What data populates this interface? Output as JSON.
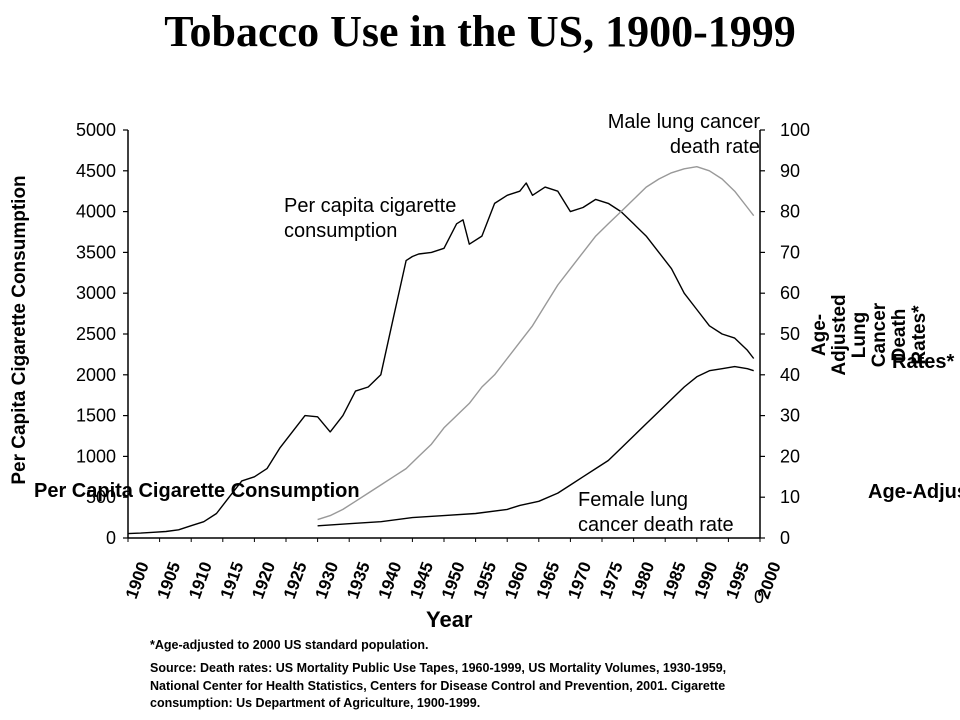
{
  "title": "Tobacco Use in the US, 1900-1999",
  "chart_data": {
    "type": "line",
    "title": "Tobacco Use in the US, 1900-1999",
    "xlabel": "Year",
    "ylabel_left": "Per Capita Cigarette Consumption",
    "ylabel_right": "Age-Adjusted Lung Cancer Death Rates*",
    "xlim": [
      1900,
      2000
    ],
    "ylim_left": [
      0,
      5000
    ],
    "ylim_right": [
      0,
      100
    ],
    "yticks_left": [
      "0",
      "500",
      "1000",
      "1500",
      "2000",
      "2500",
      "3000",
      "3500",
      "4000",
      "4500",
      "5000"
    ],
    "yticks_right": [
      "0",
      "10",
      "20",
      "30",
      "40",
      "50",
      "60",
      "70",
      "80",
      "90",
      "100"
    ],
    "xtick_labels": [
      "1900",
      "1905",
      "1910",
      "1915",
      "1920",
      "1925",
      "1930",
      "1935",
      "1940",
      "1945",
      "1950",
      "1955",
      "1960",
      "1965",
      "1970",
      "1975",
      "1980",
      "1985",
      "1990",
      "1995",
      "2000"
    ],
    "series": [
      {
        "name": "Per capita cigarette consumption",
        "axis": "left",
        "x": [
          1900,
          1902,
          1904,
          1906,
          1908,
          1910,
          1912,
          1914,
          1916,
          1918,
          1920,
          1922,
          1924,
          1926,
          1928,
          1930,
          1932,
          1934,
          1936,
          1938,
          1940,
          1942,
          1944,
          1945,
          1946,
          1948,
          1950,
          1952,
          1953,
          1954,
          1956,
          1958,
          1960,
          1962,
          1963,
          1964,
          1966,
          1968,
          1970,
          1972,
          1974,
          1976,
          1978,
          1980,
          1982,
          1984,
          1986,
          1988,
          1990,
          1992,
          1994,
          1996,
          1998,
          1999
        ],
        "y": [
          54,
          60,
          70,
          80,
          100,
          151,
          200,
          300,
          500,
          700,
          750,
          850,
          1100,
          1300,
          1500,
          1485,
          1300,
          1500,
          1800,
          1850,
          2000,
          2700,
          3400,
          3450,
          3480,
          3500,
          3550,
          3850,
          3900,
          3600,
          3700,
          4100,
          4200,
          4250,
          4350,
          4200,
          4300,
          4250,
          4000,
          4050,
          4150,
          4100,
          4000,
          3850,
          3700,
          3500,
          3300,
          3000,
          2800,
          2600,
          2500,
          2450,
          2300,
          2200
        ]
      },
      {
        "name": "Male lung cancer death rate",
        "axis": "right",
        "x": [
          1930,
          1932,
          1934,
          1936,
          1938,
          1940,
          1942,
          1944,
          1946,
          1948,
          1950,
          1952,
          1954,
          1956,
          1958,
          1960,
          1962,
          1964,
          1966,
          1968,
          1970,
          1972,
          1974,
          1976,
          1978,
          1980,
          1982,
          1984,
          1986,
          1988,
          1990,
          1992,
          1994,
          1996,
          1998,
          1999
        ],
        "y": [
          4.5,
          5.5,
          7,
          9,
          11,
          13,
          15,
          17,
          20,
          23,
          27,
          30,
          33,
          37,
          40,
          44,
          48,
          52,
          57,
          62,
          66,
          70,
          74,
          77,
          80,
          83,
          86,
          88,
          89.5,
          90.5,
          91,
          90,
          88,
          85,
          81,
          79
        ]
      },
      {
        "name": "Female lung cancer death rate",
        "axis": "right",
        "x": [
          1930,
          1935,
          1940,
          1945,
          1950,
          1955,
          1960,
          1962,
          1965,
          1968,
          1970,
          1972,
          1974,
          1976,
          1978,
          1980,
          1982,
          1984,
          1986,
          1988,
          1990,
          1992,
          1994,
          1996,
          1998,
          1999
        ],
        "y": [
          3,
          3.5,
          4,
          5,
          5.5,
          6,
          7,
          8,
          9,
          11,
          13,
          15,
          17,
          19,
          22,
          25,
          28,
          31,
          34,
          37,
          39.5,
          41,
          41.5,
          42,
          41.5,
          41
        ]
      }
    ],
    "annotations": [
      "Male lung cancer death rate",
      "Per capita cigarette consumption",
      "Female lung cancer death rate"
    ]
  },
  "annotations": {
    "male": "Male lung cancer\ndeath rate",
    "per_capita": "Per capita cigarette\nconsumption",
    "female": "Female lung\ncancer death rate"
  },
  "ghost_labels": {
    "left": "Per Capita Cigarette Consumption",
    "right_top": "Rates*",
    "right_bottom": "Age-Adjus"
  },
  "x_tick_stub": "0",
  "notes": {
    "asterisk": "*Age-adjusted to 2000 US standard population.",
    "source": "Source: Death rates: US Mortality Public Use Tapes, 1960-1999, US Mortality Volumes, 1930-1959, National Center for Health Statistics, Centers for Disease Control and Prevention, 2001. Cigarette consumption: Us Department of Agriculture, 1900-1999."
  },
  "colors": {
    "per_capita_line": "#000000",
    "male_line": "#999999",
    "female_line": "#000000"
  }
}
